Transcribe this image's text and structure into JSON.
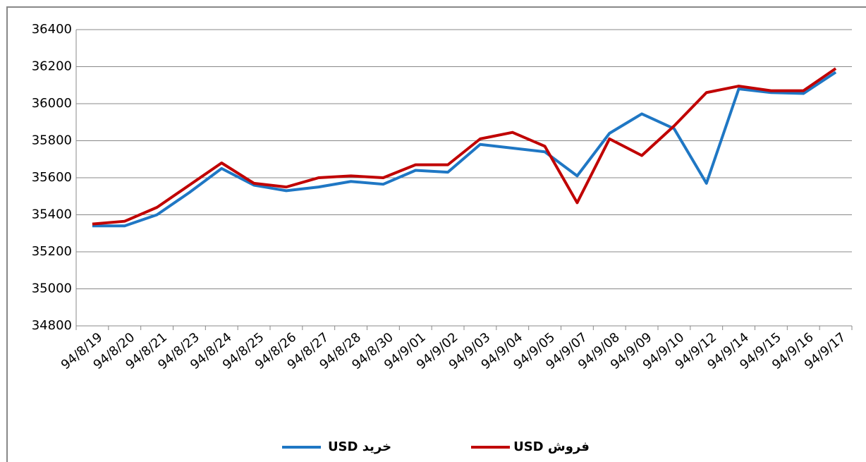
{
  "chart_data": {
    "type": "line",
    "categories": [
      "94/8/19",
      "94/8/20",
      "94/8/21",
      "94/8/23",
      "94/8/24",
      "94/8/25",
      "94/8/26",
      "94/8/27",
      "94/8/28",
      "94/8/30",
      "94/9/01",
      "94/9/02",
      "94/9/03",
      "94/9/04",
      "94/9/05",
      "94/9/07",
      "94/9/08",
      "94/9/09",
      "94/9/10",
      "94/9/12",
      "94/9/14",
      "94/9/15",
      "94/9/16",
      "94/9/17"
    ],
    "series": [
      {
        "name": "خرید USD",
        "color": "#1f77c4",
        "values": [
          35340,
          35340,
          35400,
          35520,
          35650,
          35560,
          35530,
          35550,
          35580,
          35565,
          35640,
          35630,
          35780,
          35760,
          35740,
          35610,
          35840,
          35945,
          35865,
          35570,
          36080,
          36060,
          36055,
          36170
        ]
      },
      {
        "name": "فروش USD",
        "color": "#c00000",
        "values": [
          35350,
          35365,
          35440,
          35560,
          35680,
          35570,
          35550,
          35600,
          35610,
          35600,
          35670,
          35670,
          35810,
          35845,
          35770,
          35465,
          35810,
          35720,
          35880,
          36060,
          36095,
          36070,
          36070,
          36190
        ]
      }
    ],
    "ylim": [
      34800,
      36400
    ],
    "yticks": [
      34800,
      35000,
      35200,
      35400,
      35600,
      35800,
      36000,
      36200,
      36400
    ],
    "grid": true
  }
}
